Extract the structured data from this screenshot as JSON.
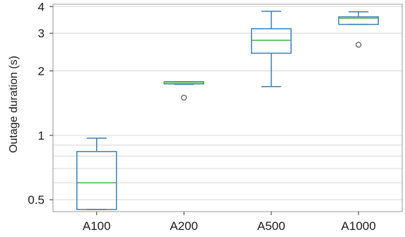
{
  "chart_data": {
    "type": "box",
    "title": "",
    "xlabel": "",
    "ylabel": "Outage duration (s)",
    "y_scale": "log",
    "ylim": [
      0.44,
      4.1
    ],
    "y_ticks": [
      0.5,
      1,
      2,
      3,
      4
    ],
    "y_tick_labels": [
      "0.5",
      "1",
      "2",
      "3",
      "4"
    ],
    "y_grid_lines": [
      0.5,
      0.6,
      0.7,
      0.8,
      0.9,
      1,
      2,
      3,
      4
    ],
    "grid": "horizontal",
    "categories": [
      "A100",
      "A200",
      "A500",
      "A1000"
    ],
    "boxes": [
      {
        "label": "A100",
        "whisker_low": 0.45,
        "q1": 0.45,
        "median": 0.6,
        "q3": 0.84,
        "whisker_high": 0.97,
        "outliers": []
      },
      {
        "label": "A200",
        "whisker_low": 1.73,
        "q1": 1.74,
        "median": 1.77,
        "q3": 1.78,
        "whisker_high": 1.78,
        "outliers": [
          1.5
        ]
      },
      {
        "label": "A500",
        "whisker_low": 1.69,
        "q1": 2.42,
        "median": 2.78,
        "q3": 3.15,
        "whisker_high": 3.8,
        "outliers": []
      },
      {
        "label": "A1000",
        "whisker_low": 3.3,
        "q1": 3.3,
        "median": 3.53,
        "q3": 3.58,
        "whisker_high": 3.78,
        "outliers": [
          2.65
        ]
      }
    ],
    "colors": {
      "box": "#3a7fb8",
      "whisker": "#3a7fb8",
      "median": "#4caf50",
      "grid": "#d6d6d6",
      "frame": "#9a9a9a",
      "outlier": "#555555"
    }
  }
}
